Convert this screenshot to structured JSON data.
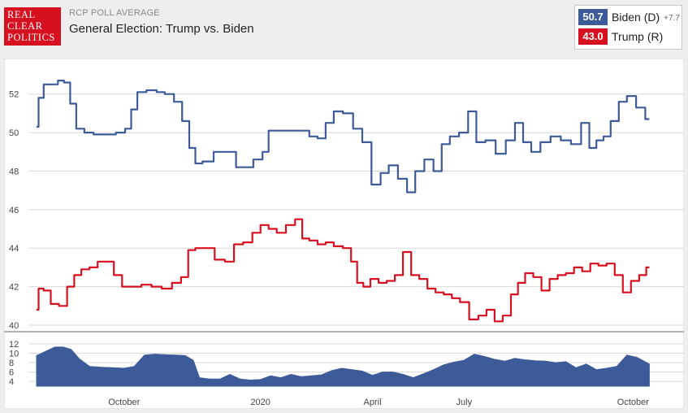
{
  "header": {
    "logo_lines": [
      "REAL",
      "CLEAR",
      "POLITICS"
    ],
    "subtitle": "RCP POLL AVERAGE",
    "title": "General Election: Trump vs. Biden"
  },
  "legend": {
    "biden": {
      "value": "50.7",
      "label": "Biden (D)",
      "spread": "+7.7"
    },
    "trump": {
      "value": "43.0",
      "label": "Trump (R)"
    }
  },
  "colors": {
    "biden": "#3d5a99",
    "trump": "#d7101f",
    "background": "#eeeeee",
    "plot": "#ffffff"
  },
  "chart_data": [
    {
      "type": "line",
      "title": "",
      "xlabel": "",
      "ylabel": "",
      "ylim": [
        40,
        53
      ],
      "yticks": [
        40,
        42,
        44,
        46,
        48,
        50,
        52
      ],
      "xtick_labels": [
        "October",
        "2020",
        "April",
        "July",
        "October"
      ],
      "xtick_positions": [
        4.3,
        11,
        16.5,
        21,
        29.3
      ],
      "xlim": [
        0,
        31.8
      ],
      "x_unit": "months since Sept 2019 start",
      "grid": "horizontal",
      "series": [
        {
          "name": "Biden (D)",
          "color": "#3d5a99",
          "points": [
            [
              0,
              50.3
            ],
            [
              0.2,
              51.8
            ],
            [
              0.5,
              52.5
            ],
            [
              0.9,
              52.5
            ],
            [
              1.2,
              52.7
            ],
            [
              1.5,
              52.6
            ],
            [
              1.8,
              51.5
            ],
            [
              2.1,
              50.2
            ],
            [
              2.6,
              50.0
            ],
            [
              3.0,
              49.9
            ],
            [
              3.6,
              49.9
            ],
            [
              4.2,
              50.0
            ],
            [
              4.5,
              50.2
            ],
            [
              4.8,
              51.2
            ],
            [
              5.1,
              52.1
            ],
            [
              5.7,
              52.2
            ],
            [
              6.1,
              52.1
            ],
            [
              6.5,
              52.0
            ],
            [
              7.0,
              51.6
            ],
            [
              7.3,
              50.6
            ],
            [
              7.7,
              49.2
            ],
            [
              7.9,
              48.4
            ],
            [
              8.4,
              48.5
            ],
            [
              9.0,
              49.0
            ],
            [
              9.6,
              49.0
            ],
            [
              10.0,
              48.2
            ],
            [
              10.4,
              48.2
            ],
            [
              10.9,
              48.6
            ],
            [
              11.3,
              49.0
            ],
            [
              11.5,
              50.1
            ],
            [
              11.9,
              50.1
            ],
            [
              12.4,
              50.1
            ],
            [
              12.8,
              50.1
            ],
            [
              13.2,
              50.1
            ],
            [
              13.6,
              49.8
            ],
            [
              14.0,
              49.7
            ],
            [
              14.4,
              50.5
            ],
            [
              14.8,
              51.1
            ],
            [
              15.3,
              51.0
            ],
            [
              15.8,
              50.2
            ],
            [
              16.2,
              49.5
            ],
            [
              16.7,
              47.3
            ],
            [
              17.1,
              47.9
            ],
            [
              17.5,
              48.3
            ],
            [
              18.0,
              47.6
            ],
            [
              18.4,
              46.9
            ],
            [
              18.8,
              48.0
            ],
            [
              19.3,
              48.6
            ],
            [
              19.7,
              48.0
            ],
            [
              20.1,
              49.4
            ],
            [
              20.5,
              49.8
            ],
            [
              21.0,
              50.0
            ],
            [
              21.4,
              51.1
            ],
            [
              21.8,
              49.5
            ],
            [
              22.3,
              49.6
            ],
            [
              22.8,
              48.9
            ],
            [
              23.3,
              49.6
            ],
            [
              23.7,
              50.5
            ],
            [
              24.1,
              49.5
            ],
            [
              24.5,
              49.0
            ],
            [
              25.0,
              49.5
            ],
            [
              25.5,
              49.8
            ],
            [
              26.0,
              49.6
            ],
            [
              26.5,
              49.4
            ],
            [
              27.0,
              50.5
            ],
            [
              27.3,
              49.2
            ],
            [
              27.7,
              49.6
            ],
            [
              28.0,
              49.8
            ],
            [
              28.4,
              50.6
            ],
            [
              28.8,
              51.6
            ],
            [
              29.2,
              51.9
            ],
            [
              29.7,
              51.3
            ],
            [
              30.1,
              50.7
            ]
          ]
        },
        {
          "name": "Trump (R)",
          "color": "#d7101f",
          "points": [
            [
              0,
              40.8
            ],
            [
              0.2,
              41.9
            ],
            [
              0.5,
              41.8
            ],
            [
              0.9,
              41.1
            ],
            [
              1.3,
              41.0
            ],
            [
              1.7,
              42.0
            ],
            [
              2.0,
              42.6
            ],
            [
              2.4,
              42.9
            ],
            [
              2.8,
              43.0
            ],
            [
              3.2,
              43.3
            ],
            [
              3.6,
              43.3
            ],
            [
              4.0,
              42.6
            ],
            [
              4.4,
              42.0
            ],
            [
              4.9,
              42.0
            ],
            [
              5.4,
              42.1
            ],
            [
              5.9,
              42.0
            ],
            [
              6.4,
              41.9
            ],
            [
              6.9,
              42.2
            ],
            [
              7.3,
              42.5
            ],
            [
              7.6,
              43.9
            ],
            [
              8.0,
              44.0
            ],
            [
              8.5,
              44.0
            ],
            [
              9.0,
              43.4
            ],
            [
              9.5,
              43.3
            ],
            [
              9.9,
              44.2
            ],
            [
              10.4,
              44.3
            ],
            [
              10.8,
              44.8
            ],
            [
              11.2,
              45.2
            ],
            [
              11.6,
              45.0
            ],
            [
              12.0,
              44.8
            ],
            [
              12.5,
              45.2
            ],
            [
              12.9,
              45.5
            ],
            [
              13.2,
              44.5
            ],
            [
              13.6,
              44.4
            ],
            [
              14.0,
              44.2
            ],
            [
              14.4,
              44.3
            ],
            [
              14.8,
              44.1
            ],
            [
              15.3,
              44.0
            ],
            [
              15.6,
              43.3
            ],
            [
              15.9,
              42.2
            ],
            [
              16.2,
              42.0
            ],
            [
              16.6,
              42.4
            ],
            [
              17.0,
              42.2
            ],
            [
              17.4,
              42.3
            ],
            [
              17.8,
              42.6
            ],
            [
              18.2,
              43.8
            ],
            [
              18.6,
              42.6
            ],
            [
              19.0,
              42.4
            ],
            [
              19.4,
              41.9
            ],
            [
              19.8,
              41.7
            ],
            [
              20.2,
              41.6
            ],
            [
              20.6,
              41.4
            ],
            [
              21.0,
              41.2
            ],
            [
              21.5,
              40.3
            ],
            [
              21.9,
              40.5
            ],
            [
              22.3,
              40.8
            ],
            [
              22.7,
              40.2
            ],
            [
              23.1,
              40.5
            ],
            [
              23.5,
              41.6
            ],
            [
              23.8,
              42.2
            ],
            [
              24.2,
              42.7
            ],
            [
              24.6,
              42.5
            ],
            [
              25.0,
              41.8
            ],
            [
              25.4,
              42.4
            ],
            [
              25.8,
              42.6
            ],
            [
              26.2,
              42.7
            ],
            [
              26.6,
              43.0
            ],
            [
              27.0,
              42.8
            ],
            [
              27.4,
              43.2
            ],
            [
              27.8,
              43.1
            ],
            [
              28.2,
              43.2
            ],
            [
              28.6,
              42.6
            ],
            [
              29.0,
              41.7
            ],
            [
              29.4,
              42.3
            ],
            [
              29.8,
              42.6
            ],
            [
              30.1,
              43.0
            ]
          ]
        }
      ]
    },
    {
      "type": "area",
      "title": "",
      "name": "spread",
      "ylim": [
        3,
        12.5
      ],
      "yticks": [
        4,
        6,
        8,
        10,
        12
      ],
      "color": "#3d5a99",
      "x": [
        0,
        0.5,
        0.9,
        1.3,
        1.7,
        2.1,
        2.6,
        3.2,
        3.8,
        4.3,
        4.8,
        5.3,
        5.8,
        6.3,
        6.8,
        7.3,
        7.7,
        8.0,
        8.5,
        9.0,
        9.5,
        10.0,
        10.5,
        11.0,
        11.5,
        12.0,
        12.5,
        13.0,
        13.5,
        14.0,
        14.5,
        15.0,
        15.5,
        16.0,
        16.5,
        17.0,
        17.5,
        18.0,
        18.5,
        19.0,
        19.5,
        20.0,
        20.5,
        21.0,
        21.5,
        22.0,
        22.5,
        23.0,
        23.5,
        24.0,
        24.5,
        25.0,
        25.5,
        26.0,
        26.5,
        27.0,
        27.5,
        28.0,
        28.5,
        29.0,
        29.5,
        30.1
      ],
      "values": [
        9.5,
        10.5,
        11.3,
        11.3,
        10.8,
        8.8,
        7.2,
        7.0,
        6.9,
        6.8,
        7.2,
        9.6,
        9.8,
        9.7,
        9.6,
        9.5,
        8.5,
        4.8,
        4.5,
        4.5,
        5.5,
        4.5,
        4.3,
        4.4,
        5.2,
        4.8,
        5.5,
        5.0,
        5.2,
        5.4,
        6.3,
        6.8,
        6.5,
        6.2,
        5.3,
        6.0,
        6.0,
        5.5,
        4.8,
        5.6,
        6.5,
        7.5,
        8.1,
        8.5,
        9.8,
        9.3,
        8.7,
        8.3,
        8.9,
        8.6,
        8.4,
        8.3,
        8.0,
        8.2,
        6.9,
        7.7,
        6.5,
        6.8,
        7.2,
        9.6,
        9.1,
        7.7
      ]
    }
  ]
}
